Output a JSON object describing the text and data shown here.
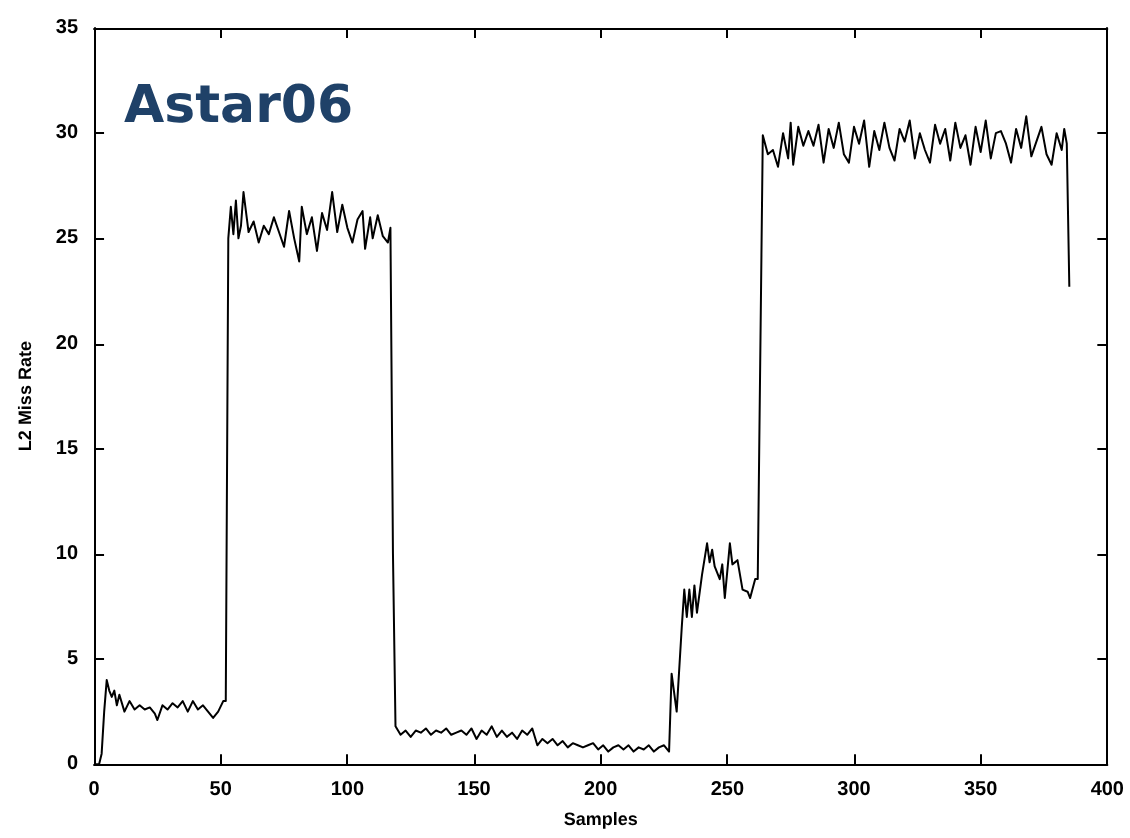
{
  "chart_data": {
    "type": "line",
    "xlabel": "Samples",
    "ylabel": "L2 Miss Rate",
    "annotations": [
      "Astar06"
    ],
    "xlim": [
      0,
      400
    ],
    "xticks": [
      0,
      50,
      100,
      150,
      200,
      250,
      300,
      350,
      400
    ],
    "ylim": [
      0,
      35
    ],
    "yticks": [
      0,
      5,
      10,
      15,
      20,
      25,
      30,
      35
    ],
    "grid": false,
    "marker": "none",
    "line_style": "solid",
    "series": [
      {
        "color": "#000000",
        "x": [
          0,
          2,
          3,
          4,
          5,
          6,
          7,
          8,
          9,
          10,
          12,
          14,
          16,
          18,
          20,
          22,
          24,
          25,
          27,
          29,
          31,
          33,
          35,
          37,
          39,
          41,
          43,
          45,
          47,
          49,
          51,
          52,
          53,
          54,
          55,
          56,
          57,
          58,
          59,
          61,
          63,
          65,
          67,
          69,
          71,
          73,
          75,
          77,
          79,
          81,
          82,
          84,
          86,
          88,
          90,
          92,
          94,
          96,
          98,
          100,
          102,
          104,
          106,
          107,
          109,
          110,
          112,
          114,
          116,
          117,
          118,
          119,
          121,
          123,
          125,
          127,
          129,
          131,
          133,
          135,
          137,
          139,
          141,
          143,
          145,
          147,
          149,
          151,
          153,
          155,
          157,
          159,
          161,
          163,
          165,
          167,
          169,
          171,
          173,
          175,
          177,
          179,
          181,
          183,
          185,
          187,
          189,
          191,
          193,
          195,
          197,
          199,
          201,
          203,
          205,
          207,
          209,
          211,
          213,
          215,
          217,
          219,
          221,
          223,
          225,
          227,
          228,
          230,
          232,
          233,
          234,
          235,
          236,
          237,
          238,
          240,
          242,
          243,
          244,
          245,
          247,
          248,
          249,
          251,
          252,
          254,
          256,
          258,
          259,
          261,
          262,
          264,
          266,
          268,
          270,
          272,
          274,
          275,
          276,
          278,
          280,
          282,
          284,
          286,
          288,
          290,
          292,
          294,
          296,
          298,
          300,
          302,
          304,
          306,
          308,
          310,
          312,
          314,
          316,
          318,
          320,
          322,
          324,
          326,
          328,
          330,
          332,
          334,
          336,
          338,
          340,
          342,
          344,
          346,
          348,
          350,
          352,
          354,
          356,
          358,
          360,
          362,
          364,
          366,
          368,
          370,
          372,
          374,
          376,
          378,
          380,
          382,
          383,
          384,
          385
        ],
        "values": [
          0,
          0,
          0.5,
          2.5,
          4,
          3.5,
          3.2,
          3.5,
          2.8,
          3.3,
          2.5,
          3.0,
          2.6,
          2.8,
          2.6,
          2.7,
          2.4,
          2.1,
          2.8,
          2.6,
          2.9,
          2.7,
          3.0,
          2.5,
          3.0,
          2.6,
          2.8,
          2.5,
          2.2,
          2.5,
          3.0,
          3.0,
          25,
          26.5,
          25.2,
          26.8,
          25,
          25.6,
          27.2,
          25.3,
          25.8,
          24.8,
          25.6,
          25.2,
          26.0,
          25.3,
          24.6,
          26.3,
          25,
          23.9,
          26.5,
          25.2,
          26.0,
          24.4,
          26.2,
          25.4,
          27.2,
          25.3,
          26.6,
          25.5,
          24.8,
          25.9,
          26.3,
          24.5,
          26.0,
          25.0,
          26.1,
          25.1,
          24.8,
          25.5,
          10,
          1.8,
          1.4,
          1.6,
          1.3,
          1.6,
          1.5,
          1.7,
          1.4,
          1.6,
          1.5,
          1.7,
          1.4,
          1.5,
          1.6,
          1.4,
          1.7,
          1.2,
          1.6,
          1.4,
          1.8,
          1.3,
          1.6,
          1.3,
          1.5,
          1.2,
          1.6,
          1.4,
          1.7,
          0.9,
          1.2,
          1.0,
          1.2,
          0.9,
          1.1,
          0.8,
          1.0,
          0.9,
          0.8,
          0.9,
          1.0,
          0.7,
          0.9,
          0.6,
          0.8,
          0.9,
          0.7,
          0.9,
          0.6,
          0.8,
          0.7,
          0.9,
          0.6,
          0.8,
          0.9,
          0.6,
          4.3,
          2.5,
          6.5,
          8.3,
          7,
          8.3,
          7,
          8.5,
          7.2,
          9,
          10.5,
          9.6,
          10.2,
          9.4,
          8.8,
          9.5,
          7.9,
          10.5,
          9.5,
          9.7,
          8.3,
          8.2,
          7.9,
          8.8,
          8.8,
          29.9,
          29,
          29.2,
          28.4,
          30.0,
          28.8,
          30.5,
          28.5,
          30.3,
          29.4,
          30.1,
          29.4,
          30.4,
          28.6,
          30.2,
          29.3,
          30.5,
          29.0,
          28.6,
          30.3,
          29.5,
          30.6,
          28.4,
          30.1,
          29.2,
          30.5,
          29.3,
          28.7,
          30.2,
          29.6,
          30.6,
          28.8,
          30.0,
          29.2,
          28.6,
          30.4,
          29.5,
          30.2,
          28.7,
          30.5,
          29.3,
          29.9,
          28.5,
          30.3,
          29.1,
          30.6,
          28.8,
          30.0,
          30.1,
          29.5,
          28.6,
          30.2,
          29.3,
          30.8,
          28.9,
          29.6,
          30.3,
          29.0,
          28.5,
          30.0,
          29.2,
          30.2,
          29.5,
          22.7
        ]
      }
    ]
  }
}
